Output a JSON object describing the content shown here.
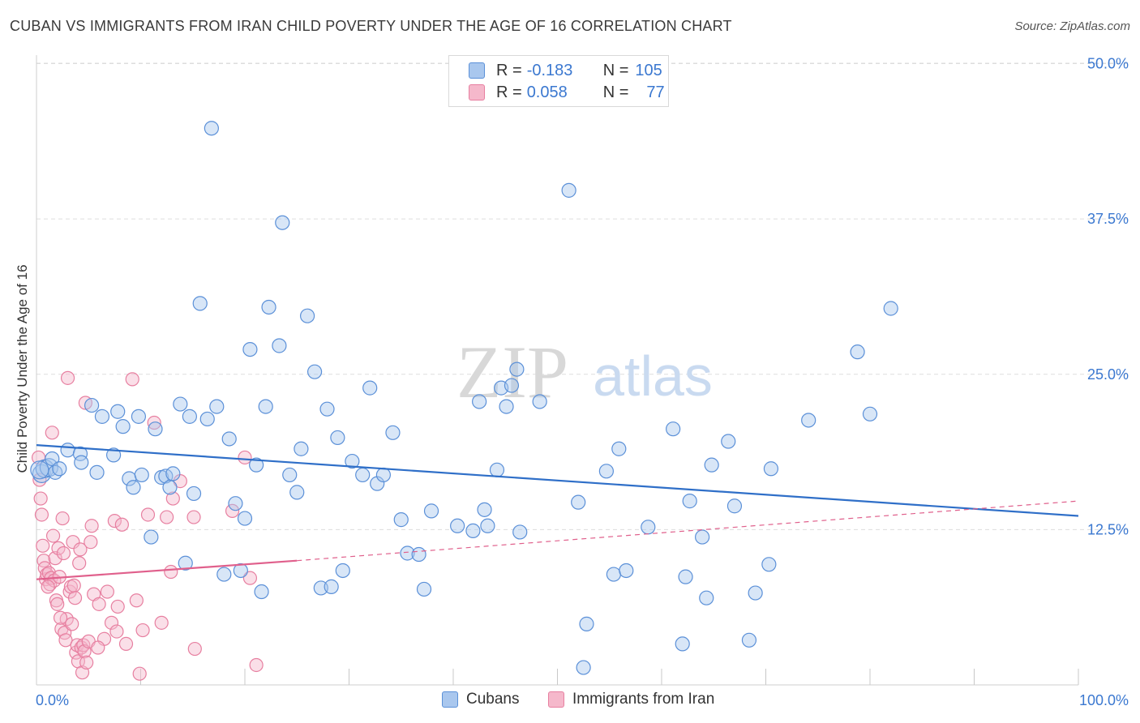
{
  "title": "CUBAN VS IMMIGRANTS FROM IRAN CHILD POVERTY UNDER THE AGE OF 16 CORRELATION CHART",
  "source": "Source: ZipAtlas.com",
  "watermark": {
    "zip": "ZIP",
    "atlas": "atlas"
  },
  "legend": {
    "rows": [
      {
        "r_label": "R =",
        "r_value": "-0.183",
        "n_label": "N =",
        "n_value": "105"
      },
      {
        "r_label": "R =",
        "r_value": "0.058",
        "n_label": "N =",
        "n_value": "77"
      }
    ]
  },
  "bottom_legend": {
    "cubans": "Cubans",
    "iran": "Immigrants from Iran"
  },
  "colors": {
    "cubans_fill": "#a9c7ee",
    "cubans_stroke": "#5b90d8",
    "cubans_line": "#2f6fc8",
    "iran_fill": "#f5b8cb",
    "iran_stroke": "#e77fa0",
    "iran_line": "#e0608c",
    "tick_text": "#3b78d0",
    "grid": "#dddddd"
  },
  "chart_data": {
    "type": "scatter",
    "title": "CUBAN VS IMMIGRANTS FROM IRAN CHILD POVERTY UNDER THE AGE OF 16 CORRELATION CHART",
    "xlabel": "",
    "ylabel": "Child Poverty Under the Age of 16",
    "xlim": [
      0,
      100
    ],
    "ylim": [
      0,
      52
    ],
    "x_tick_labels": [
      "0.0%",
      "100.0%"
    ],
    "y_ticks": [
      12.5,
      25.0,
      37.5,
      50.0
    ],
    "y_tick_labels": [
      "12.5%",
      "25.0%",
      "37.5%",
      "50.0%"
    ],
    "grid": true,
    "legend_position": "top-center",
    "series": [
      {
        "name": "Cubans",
        "R": -0.183,
        "N": 105,
        "trend": {
          "x": [
            0,
            100
          ],
          "y": [
            19.3,
            13.6
          ]
        },
        "points": [
          [
            0.5,
            17.0
          ],
          [
            0.8,
            17.4
          ],
          [
            1.2,
            17.5
          ],
          [
            1.5,
            18.2
          ],
          [
            1.8,
            17.1
          ],
          [
            2.2,
            17.4
          ],
          [
            3.0,
            18.9
          ],
          [
            4.2,
            18.6
          ],
          [
            4.3,
            17.9
          ],
          [
            5.8,
            17.1
          ],
          [
            5.3,
            22.5
          ],
          [
            6.3,
            21.6
          ],
          [
            7.4,
            18.5
          ],
          [
            7.8,
            22.0
          ],
          [
            8.3,
            20.8
          ],
          [
            8.9,
            16.6
          ],
          [
            9.3,
            15.9
          ],
          [
            9.8,
            21.6
          ],
          [
            10.1,
            16.9
          ],
          [
            11.0,
            11.9
          ],
          [
            11.4,
            20.6
          ],
          [
            12.0,
            16.7
          ],
          [
            12.4,
            16.8
          ],
          [
            12.8,
            15.9
          ],
          [
            13.1,
            17.0
          ],
          [
            13.8,
            22.6
          ],
          [
            14.3,
            9.8
          ],
          [
            14.7,
            21.6
          ],
          [
            15.1,
            15.4
          ],
          [
            15.7,
            30.7
          ],
          [
            16.4,
            21.4
          ],
          [
            16.8,
            44.8
          ],
          [
            17.3,
            22.4
          ],
          [
            18.0,
            8.9
          ],
          [
            18.5,
            19.8
          ],
          [
            19.1,
            14.6
          ],
          [
            19.6,
            9.2
          ],
          [
            20.0,
            13.4
          ],
          [
            20.5,
            27.0
          ],
          [
            21.1,
            17.7
          ],
          [
            21.6,
            7.5
          ],
          [
            22.0,
            22.4
          ],
          [
            22.3,
            30.4
          ],
          [
            23.3,
            27.3
          ],
          [
            23.6,
            37.2
          ],
          [
            24.3,
            16.9
          ],
          [
            25.0,
            15.5
          ],
          [
            25.4,
            19.0
          ],
          [
            26.0,
            29.7
          ],
          [
            26.7,
            25.2
          ],
          [
            27.3,
            7.8
          ],
          [
            27.9,
            22.2
          ],
          [
            28.3,
            7.9
          ],
          [
            28.9,
            19.9
          ],
          [
            29.4,
            9.2
          ],
          [
            30.3,
            18.0
          ],
          [
            31.3,
            16.9
          ],
          [
            32.0,
            23.9
          ],
          [
            32.7,
            16.2
          ],
          [
            33.3,
            16.9
          ],
          [
            34.2,
            20.3
          ],
          [
            35.0,
            13.3
          ],
          [
            35.6,
            10.6
          ],
          [
            36.7,
            10.5
          ],
          [
            37.2,
            7.7
          ],
          [
            37.9,
            14.0
          ],
          [
            40.4,
            12.8
          ],
          [
            41.9,
            12.4
          ],
          [
            42.5,
            22.8
          ],
          [
            43.0,
            14.1
          ],
          [
            43.3,
            12.8
          ],
          [
            44.2,
            17.3
          ],
          [
            44.6,
            23.9
          ],
          [
            45.1,
            22.4
          ],
          [
            45.6,
            24.1
          ],
          [
            46.1,
            25.4
          ],
          [
            46.4,
            12.3
          ],
          [
            48.3,
            22.8
          ],
          [
            51.1,
            39.8
          ],
          [
            52.0,
            14.7
          ],
          [
            52.5,
            1.4
          ],
          [
            52.8,
            4.9
          ],
          [
            54.7,
            17.2
          ],
          [
            55.4,
            8.9
          ],
          [
            55.9,
            19.0
          ],
          [
            56.6,
            9.2
          ],
          [
            58.7,
            12.7
          ],
          [
            61.1,
            20.6
          ],
          [
            62.0,
            3.3
          ],
          [
            62.3,
            8.7
          ],
          [
            62.7,
            14.8
          ],
          [
            63.9,
            11.9
          ],
          [
            64.3,
            7.0
          ],
          [
            64.8,
            17.7
          ],
          [
            66.4,
            19.6
          ],
          [
            67.0,
            14.4
          ],
          [
            68.4,
            3.6
          ],
          [
            69.0,
            7.4
          ],
          [
            70.3,
            9.7
          ],
          [
            70.5,
            17.4
          ],
          [
            74.1,
            21.3
          ],
          [
            78.8,
            26.8
          ],
          [
            80.0,
            21.8
          ],
          [
            82.0,
            30.3
          ],
          [
            0.3,
            17.3
          ]
        ]
      },
      {
        "name": "Immigrants from Iran",
        "R": 0.058,
        "N": 77,
        "trend_solid": {
          "x": [
            0,
            25
          ],
          "y": [
            8.5,
            10.0
          ]
        },
        "trend_dashed": {
          "x": [
            25,
            100
          ],
          "y": [
            10.0,
            14.8
          ]
        },
        "points": [
          [
            0.2,
            18.3
          ],
          [
            0.4,
            15.0
          ],
          [
            0.5,
            13.7
          ],
          [
            0.6,
            11.2
          ],
          [
            0.7,
            10.0
          ],
          [
            0.8,
            9.4
          ],
          [
            0.9,
            8.5
          ],
          [
            1.0,
            8.9
          ],
          [
            1.2,
            9.0
          ],
          [
            1.3,
            8.1
          ],
          [
            1.4,
            8.6
          ],
          [
            1.5,
            20.3
          ],
          [
            1.6,
            12.0
          ],
          [
            1.7,
            8.4
          ],
          [
            1.8,
            10.2
          ],
          [
            1.9,
            6.8
          ],
          [
            2.0,
            6.5
          ],
          [
            2.1,
            11.0
          ],
          [
            2.2,
            8.7
          ],
          [
            2.4,
            4.5
          ],
          [
            2.5,
            13.4
          ],
          [
            2.6,
            10.6
          ],
          [
            2.7,
            4.2
          ],
          [
            2.8,
            3.6
          ],
          [
            2.9,
            5.3
          ],
          [
            3.0,
            24.7
          ],
          [
            3.2,
            7.5
          ],
          [
            3.3,
            7.9
          ],
          [
            3.4,
            4.9
          ],
          [
            3.5,
            11.5
          ],
          [
            3.6,
            8.0
          ],
          [
            3.7,
            7.0
          ],
          [
            3.8,
            2.6
          ],
          [
            3.9,
            3.2
          ],
          [
            4.0,
            1.9
          ],
          [
            4.1,
            9.8
          ],
          [
            4.2,
            10.9
          ],
          [
            4.3,
            3.0
          ],
          [
            4.4,
            1.0
          ],
          [
            4.5,
            3.2
          ],
          [
            4.6,
            2.7
          ],
          [
            4.7,
            22.7
          ],
          [
            4.8,
            1.8
          ],
          [
            5.0,
            3.5
          ],
          [
            5.2,
            11.5
          ],
          [
            5.3,
            12.8
          ],
          [
            5.5,
            7.3
          ],
          [
            6.0,
            6.5
          ],
          [
            6.5,
            3.7
          ],
          [
            6.8,
            7.5
          ],
          [
            7.2,
            5.0
          ],
          [
            7.5,
            13.2
          ],
          [
            7.7,
            4.3
          ],
          [
            7.8,
            6.3
          ],
          [
            8.2,
            12.9
          ],
          [
            8.6,
            3.3
          ],
          [
            9.2,
            24.6
          ],
          [
            9.6,
            6.8
          ],
          [
            9.9,
            0.9
          ],
          [
            10.2,
            4.4
          ],
          [
            10.7,
            13.7
          ],
          [
            11.3,
            21.1
          ],
          [
            12.0,
            5.0
          ],
          [
            12.5,
            13.5
          ],
          [
            12.9,
            9.1
          ],
          [
            13.1,
            15.0
          ],
          [
            13.8,
            16.4
          ],
          [
            15.1,
            13.5
          ],
          [
            15.2,
            2.9
          ],
          [
            18.8,
            14.0
          ],
          [
            20.0,
            18.3
          ],
          [
            20.5,
            8.6
          ],
          [
            21.1,
            1.6
          ],
          [
            0.3,
            16.5
          ],
          [
            2.3,
            5.4
          ],
          [
            5.9,
            3.0
          ],
          [
            1.1,
            7.9
          ]
        ]
      }
    ]
  }
}
